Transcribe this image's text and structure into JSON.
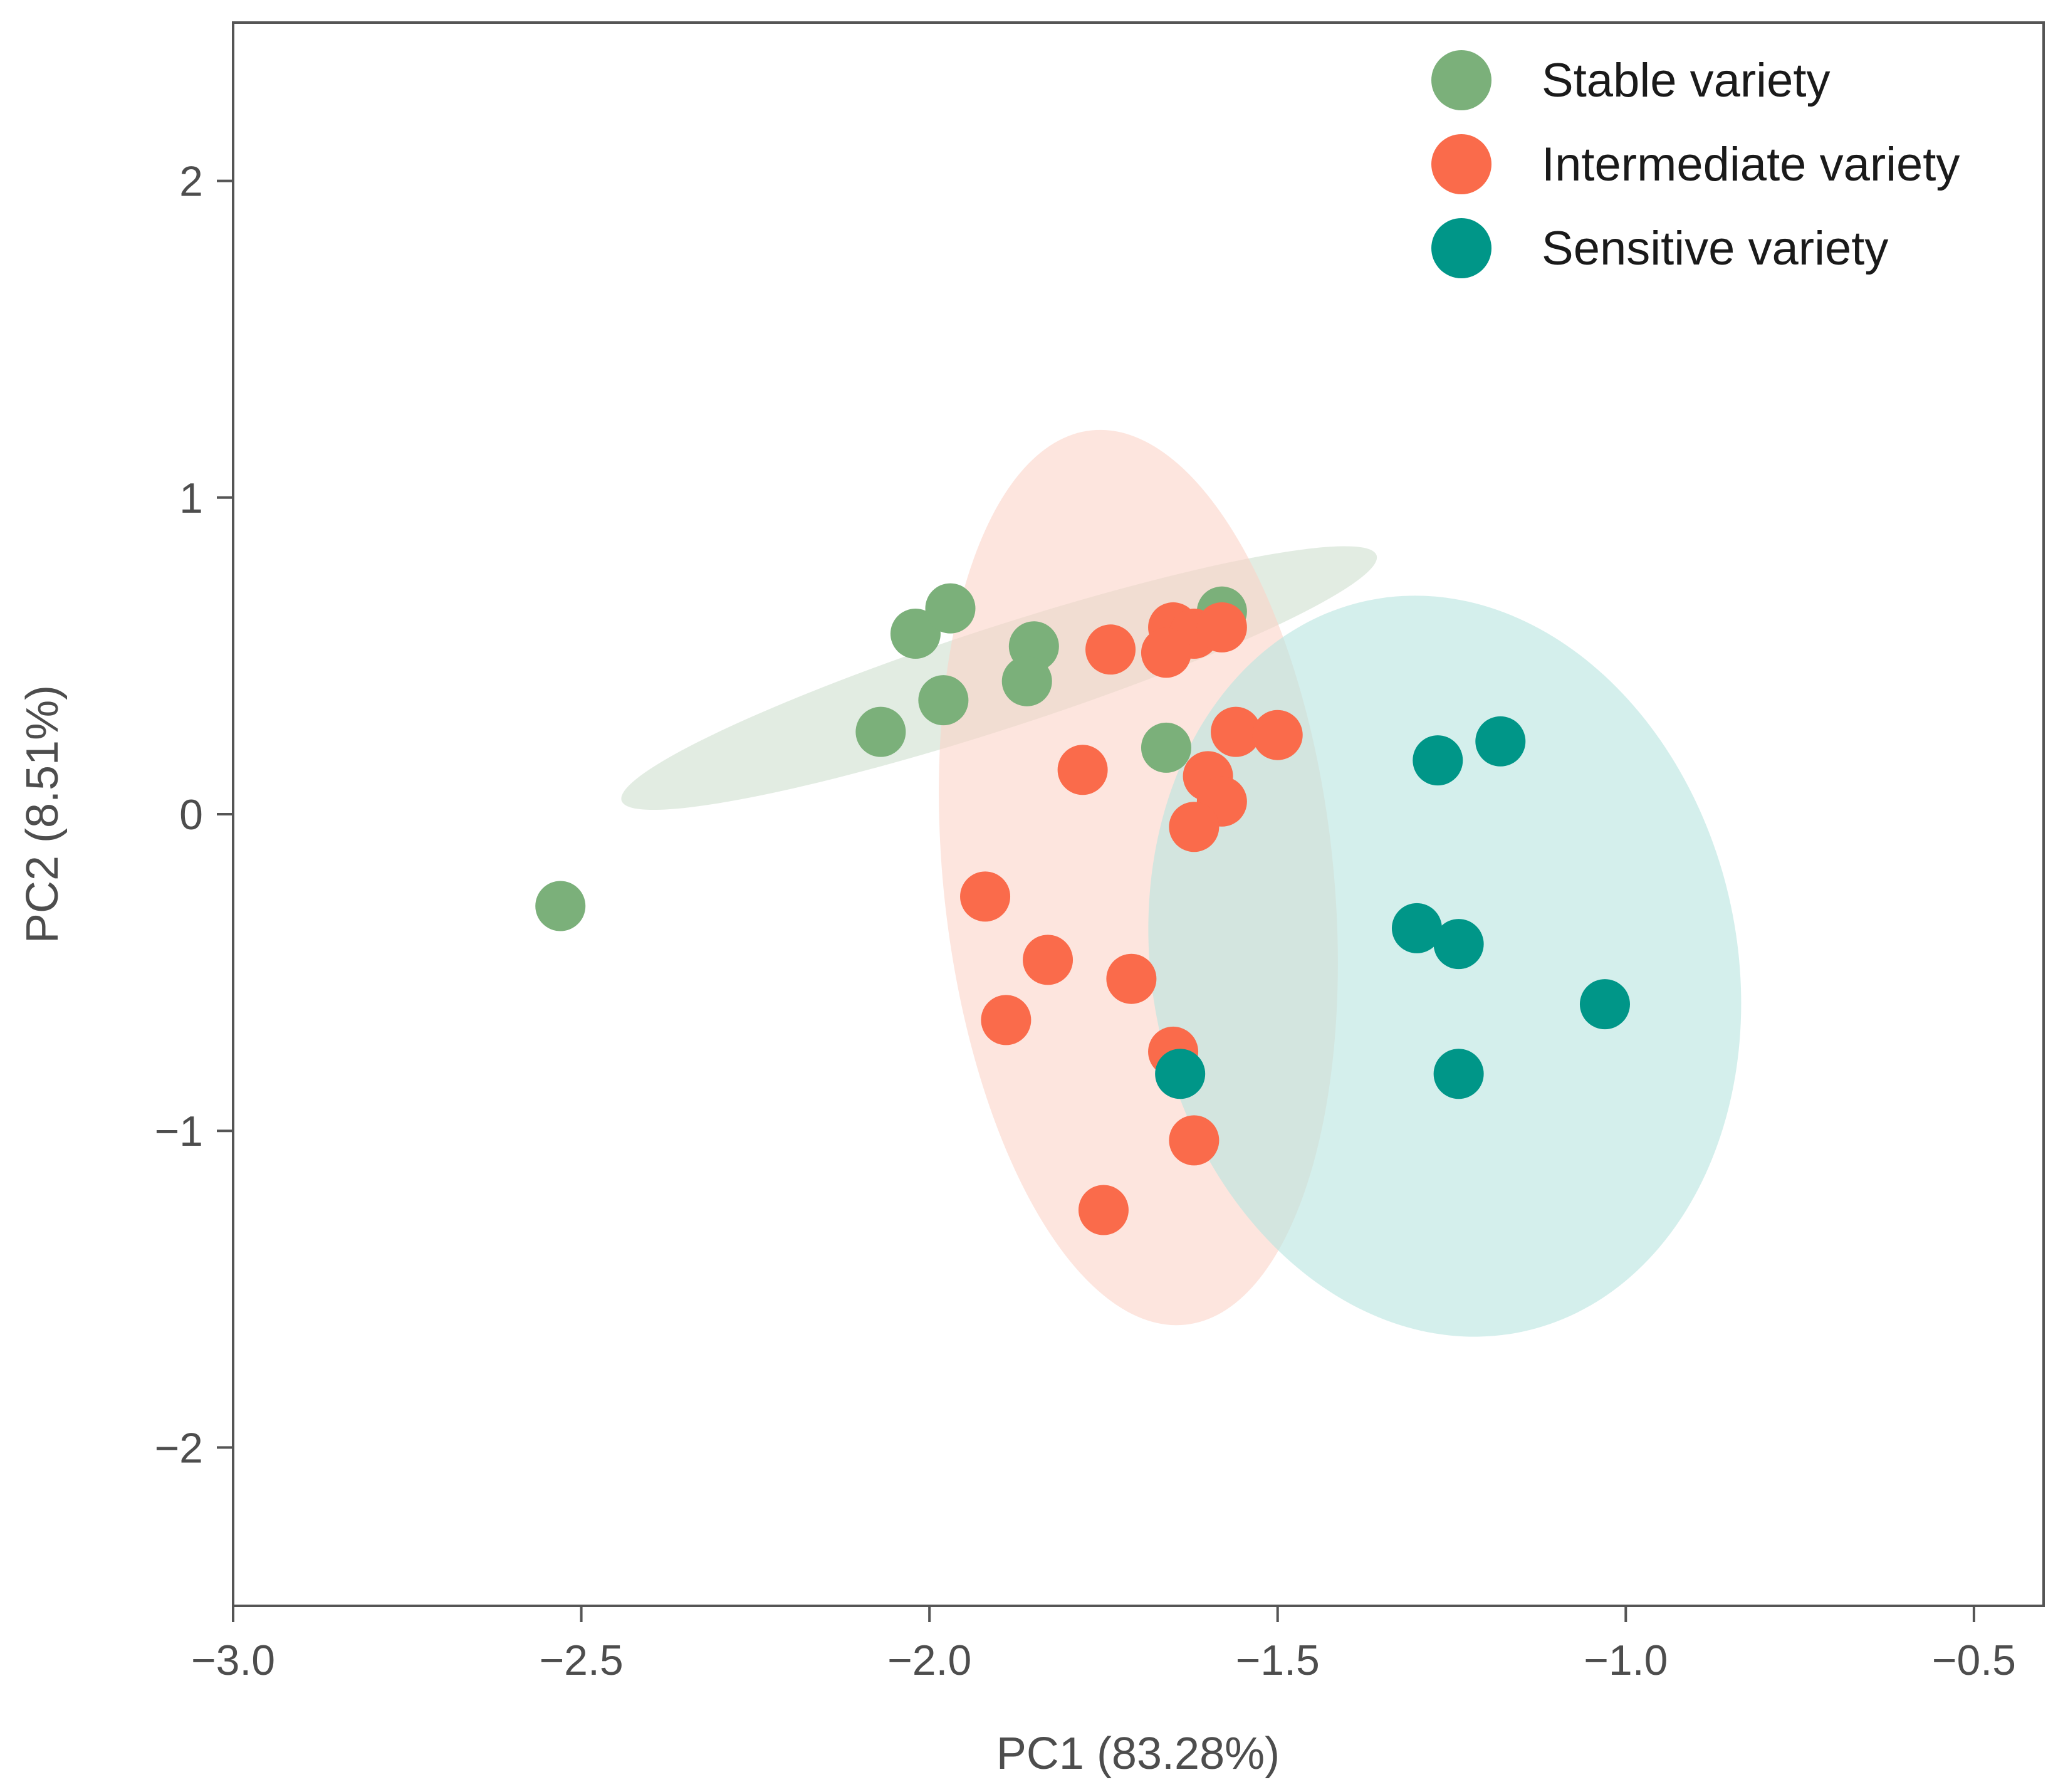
{
  "chart_data": {
    "type": "scatter",
    "title": "",
    "xlabel": "PC1 (83.28%)",
    "ylabel": "PC2 (8.51%)",
    "xlim": [
      -3.0,
      -0.4
    ],
    "ylim": [
      -2.5,
      2.5
    ],
    "xticks": [
      -3.0,
      -2.5,
      -2.0,
      -1.5,
      -1.0,
      -0.5
    ],
    "xtick_labels": [
      "−3.0",
      "−2.5",
      "−2.0",
      "−1.5",
      "−1.0",
      "−0.5"
    ],
    "yticks": [
      2,
      1,
      0,
      -1,
      -2
    ],
    "ytick_labels": [
      "2",
      "1",
      "0",
      "−1",
      "−2"
    ],
    "grid": false,
    "legend_position": "top-right",
    "series": [
      {
        "name": "Stable variety",
        "color": "#7bb07a",
        "ellipse_color": "#cfe0cf",
        "ellipse": {
          "cx": -1.9,
          "cy": 0.43,
          "rx": 0.57,
          "ry": 0.16,
          "angle_deg": 18
        },
        "points": [
          [
            -2.02,
            0.57
          ],
          [
            -1.97,
            0.65
          ],
          [
            -2.07,
            0.26
          ],
          [
            -1.98,
            0.36
          ],
          [
            -1.85,
            0.53
          ],
          [
            -1.86,
            0.42
          ],
          [
            -1.58,
            0.64
          ],
          [
            -1.66,
            0.21
          ],
          [
            -2.53,
            -0.29
          ]
        ]
      },
      {
        "name": "Intermediate variety",
        "color": "#fa6b4b",
        "ellipse_color": "#fcd3c8",
        "ellipse": {
          "cx": -1.7,
          "cy": -0.2,
          "rx": 0.28,
          "ry": 1.42,
          "angle_deg": 6
        },
        "points": [
          [
            -1.74,
            0.52
          ],
          [
            -1.65,
            0.59
          ],
          [
            -1.62,
            0.57
          ],
          [
            -1.58,
            0.59
          ],
          [
            -1.66,
            0.51
          ],
          [
            -1.56,
            0.26
          ],
          [
            -1.5,
            0.25
          ],
          [
            -1.78,
            0.14
          ],
          [
            -1.6,
            0.12
          ],
          [
            -1.58,
            0.04
          ],
          [
            -1.62,
            -0.04
          ],
          [
            -1.92,
            -0.26
          ],
          [
            -1.83,
            -0.46
          ],
          [
            -1.71,
            -0.52
          ],
          [
            -1.89,
            -0.65
          ],
          [
            -1.65,
            -0.75
          ],
          [
            -1.62,
            -1.03
          ],
          [
            -1.75,
            -1.25
          ]
        ]
      },
      {
        "name": "Sensitive variety",
        "color": "#009688",
        "ellipse_color": "#b8e4e0",
        "ellipse": {
          "cx": -1.26,
          "cy": -0.48,
          "rx": 0.42,
          "ry": 1.18,
          "angle_deg": 12
        },
        "points": [
          [
            -1.27,
            0.17
          ],
          [
            -1.18,
            0.23
          ],
          [
            -1.3,
            -0.36
          ],
          [
            -1.24,
            -0.41
          ],
          [
            -1.03,
            -0.6
          ],
          [
            -1.24,
            -0.82
          ],
          [
            -1.64,
            -0.82
          ]
        ]
      }
    ]
  }
}
